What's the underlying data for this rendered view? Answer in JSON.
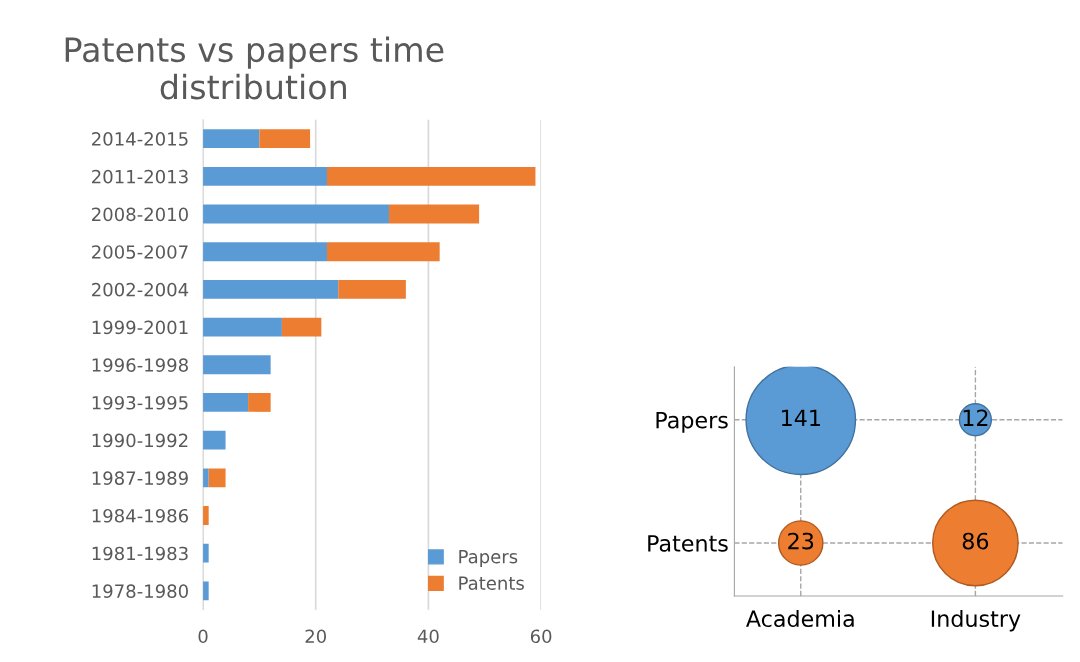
{
  "chart_data": [
    {
      "type": "bar",
      "orientation": "horizontal",
      "stacked": true,
      "title": "Patents vs papers time distribution",
      "categories": [
        "2014-2015",
        "2011-2013",
        "2008-2010",
        "2005-2007",
        "2002-2004",
        "1999-2001",
        "1996-1998",
        "1993-1995",
        "1990-1992",
        "1987-1989",
        "1984-1986",
        "1981-1983",
        "1978-1980"
      ],
      "series": [
        {
          "name": "Papers",
          "color": "#5b9bd5",
          "values": [
            10,
            22,
            33,
            22,
            24,
            14,
            12,
            8,
            4,
            1,
            0,
            1,
            1
          ]
        },
        {
          "name": "Patents",
          "color": "#ed7d31",
          "values": [
            9,
            37,
            16,
            20,
            12,
            7,
            0,
            4,
            0,
            3,
            1,
            0,
            0
          ]
        }
      ],
      "xlim": [
        0,
        60
      ],
      "xticks": [
        0,
        20,
        40,
        60
      ],
      "grid": "x",
      "legend": "bottom right"
    },
    {
      "type": "other",
      "categories": [
        "Academia",
        "Industry"
      ],
      "series": [
        {
          "name": "Papers",
          "color": "#5b9bd5",
          "values": [
            141,
            12
          ]
        },
        {
          "name": "Patents",
          "color": "#ed7d31",
          "values": [
            23,
            86
          ]
        }
      ],
      "data_labels": true
    }
  ]
}
